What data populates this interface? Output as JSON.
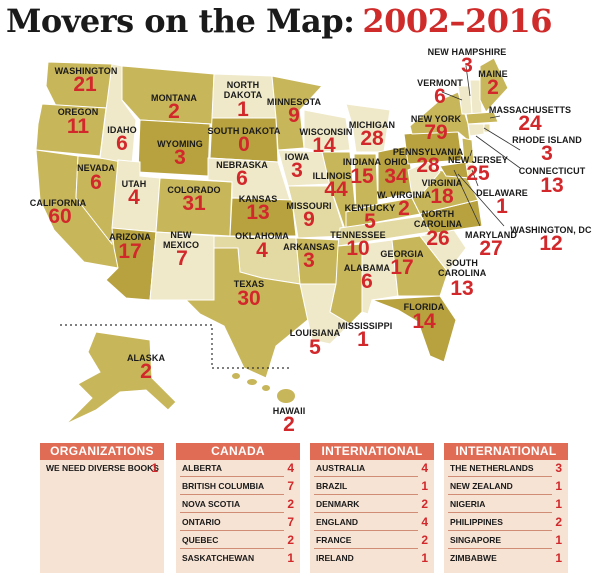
{
  "title": {
    "part1": "Movers on the Map:",
    "part2": "2002–2016"
  },
  "colors": {
    "dark": "#b7a23f",
    "mid": "#c8b65a",
    "light": "#e3d9a3",
    "pale": "#efe9c9",
    "accent": "#d2282b",
    "header": "#e06c55",
    "panel": "#f6e3d4"
  },
  "map": {
    "states": [
      {
        "name": "WASHINGTON",
        "count": "21"
      },
      {
        "name": "OREGON",
        "count": "11"
      },
      {
        "name": "CALIFORNIA",
        "count": "60"
      },
      {
        "name": "IDAHO",
        "count": "6"
      },
      {
        "name": "NEVADA",
        "count": "6"
      },
      {
        "name": "MONTANA",
        "count": "2"
      },
      {
        "name": "WYOMING",
        "count": "3"
      },
      {
        "name": "UTAH",
        "count": "4"
      },
      {
        "name": "ARIZONA",
        "count": "17"
      },
      {
        "name": "COLORADO",
        "count": "31"
      },
      {
        "name": "NEW MEXICO",
        "count": "7"
      },
      {
        "name": "NORTH DAKOTA",
        "count": "1"
      },
      {
        "name": "SOUTH DAKOTA",
        "count": "0"
      },
      {
        "name": "NEBRASKA",
        "count": "6"
      },
      {
        "name": "KANSAS",
        "count": "13"
      },
      {
        "name": "OKLAHOMA",
        "count": "4"
      },
      {
        "name": "TEXAS",
        "count": "30"
      },
      {
        "name": "MINNESOTA",
        "count": "9"
      },
      {
        "name": "IOWA",
        "count": "3"
      },
      {
        "name": "MISSOURI",
        "count": "9"
      },
      {
        "name": "ARKANSAS",
        "count": "3"
      },
      {
        "name": "LOUISIANA",
        "count": "5"
      },
      {
        "name": "WISCONSIN",
        "count": "14"
      },
      {
        "name": "ILLINOIS",
        "count": "44"
      },
      {
        "name": "MISSISSIPPI",
        "count": "1"
      },
      {
        "name": "MICHIGAN",
        "count": "28"
      },
      {
        "name": "INDIANA",
        "count": "15"
      },
      {
        "name": "OHIO",
        "count": "34"
      },
      {
        "name": "KENTUCKY",
        "count": "5"
      },
      {
        "name": "TENNESSEE",
        "count": "10"
      },
      {
        "name": "ALABAMA",
        "count": "6"
      },
      {
        "name": "GEORGIA",
        "count": "17"
      },
      {
        "name": "FLORIDA",
        "count": "14"
      },
      {
        "name": "SOUTH CAROLINA",
        "count": "13"
      },
      {
        "name": "NORTH CAROLINA",
        "count": "26"
      },
      {
        "name": "VIRGINIA",
        "count": "18"
      },
      {
        "name": "W. VIRGINIA",
        "count": "2"
      },
      {
        "name": "PENNSYLVANIA",
        "count": "28"
      },
      {
        "name": "NEW YORK",
        "count": "79"
      },
      {
        "name": "VERMONT",
        "count": "6"
      },
      {
        "name": "NEW HAMPSHIRE",
        "count": "3"
      },
      {
        "name": "MAINE",
        "count": "2"
      },
      {
        "name": "MASSACHUSETTS",
        "count": "24"
      },
      {
        "name": "RHODE ISLAND",
        "count": "3"
      },
      {
        "name": "CONNECTICUT",
        "count": "13"
      },
      {
        "name": "NEW JERSEY",
        "count": "25"
      },
      {
        "name": "DELAWARE",
        "count": "1"
      },
      {
        "name": "MARYLAND",
        "count": "27"
      },
      {
        "name": "WASHINGTON, DC",
        "count": "12"
      },
      {
        "name": "ALASKA",
        "count": "2"
      },
      {
        "name": "HAWAII",
        "count": "2"
      }
    ]
  },
  "panels": [
    {
      "header": "ORGANIZATIONS",
      "rows": [
        {
          "name": "WE NEED DIVERSE BOOKS",
          "count": "1"
        }
      ]
    },
    {
      "header": "CANADA",
      "rows": [
        {
          "name": "ALBERTA",
          "count": "4"
        },
        {
          "name": "BRITISH COLUMBIA",
          "count": "7"
        },
        {
          "name": "NOVA SCOTIA",
          "count": "2"
        },
        {
          "name": "ONTARIO",
          "count": "7"
        },
        {
          "name": "QUEBEC",
          "count": "2"
        },
        {
          "name": "SASKATCHEWAN",
          "count": "1"
        }
      ]
    },
    {
      "header": "INTERNATIONAL",
      "rows": [
        {
          "name": "AUSTRALIA",
          "count": "4"
        },
        {
          "name": "BRAZIL",
          "count": "1"
        },
        {
          "name": "DENMARK",
          "count": "2"
        },
        {
          "name": "ENGLAND",
          "count": "4"
        },
        {
          "name": "FRANCE",
          "count": "2"
        },
        {
          "name": "IRELAND",
          "count": "1"
        }
      ]
    },
    {
      "header": "INTERNATIONAL",
      "rows": [
        {
          "name": "THE NETHERLANDS",
          "count": "3"
        },
        {
          "name": "NEW ZEALAND",
          "count": "1"
        },
        {
          "name": "NIGERIA",
          "count": "1"
        },
        {
          "name": "PHILIPPINES",
          "count": "2"
        },
        {
          "name": "SINGAPORE",
          "count": "1"
        },
        {
          "name": "ZIMBABWE",
          "count": "1"
        }
      ]
    }
  ]
}
